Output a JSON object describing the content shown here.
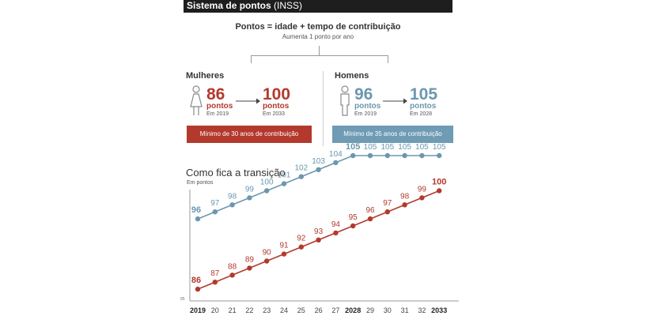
{
  "header": {
    "title": "Sistema de pontos",
    "title_suffix": "(INSS)"
  },
  "formula": {
    "main": "Pontos = idade + tempo de contribuição",
    "sub": "Aumenta 1 ponto por ano"
  },
  "women": {
    "title": "Mulheres",
    "start_value": "86",
    "start_unit": "pontos",
    "start_year": "Em 2019",
    "end_value": "100",
    "end_unit": "pontos",
    "end_year": "Em 2033",
    "minimum": "Mínimo de 30 anos de contribuição"
  },
  "men": {
    "title": "Homens",
    "start_value": "96",
    "start_unit": "pontos",
    "start_year": "Em 2019",
    "end_value": "105",
    "end_unit": "pontos",
    "end_year": "Em 2028",
    "minimum": "Mínimo de 35 anos de contribuição"
  },
  "colors": {
    "women": "#b3392c",
    "men": "#6b97af",
    "men_box": "#6f9bb4",
    "women_box": "#b3392c"
  },
  "icons": {
    "woman": "woman-figure-icon",
    "man": "man-figure-icon",
    "arrow": "arrow-right-icon"
  },
  "chart_data": {
    "type": "line",
    "title": "Como fica a transição",
    "ylabel": "Em pontos",
    "y_axis_min_label": "85",
    "ylim": [
      85,
      106
    ],
    "grid": false,
    "x": [
      "2019",
      "20",
      "21",
      "22",
      "23",
      "24",
      "25",
      "26",
      "27",
      "2028",
      "29",
      "30",
      "31",
      "32",
      "2033"
    ],
    "bold_x": [
      "2019",
      "2028",
      "2033"
    ],
    "series": [
      {
        "key": "men",
        "values": [
          96,
          97,
          98,
          99,
          100,
          101,
          102,
          103,
          104,
          105,
          105,
          105,
          105,
          105,
          105
        ],
        "bold_labels": [
          0,
          9
        ]
      },
      {
        "key": "women",
        "values": [
          86,
          87,
          88,
          89,
          90,
          91,
          92,
          93,
          94,
          95,
          96,
          97,
          98,
          99,
          100
        ],
        "bold_labels": [
          0,
          14
        ]
      }
    ]
  }
}
